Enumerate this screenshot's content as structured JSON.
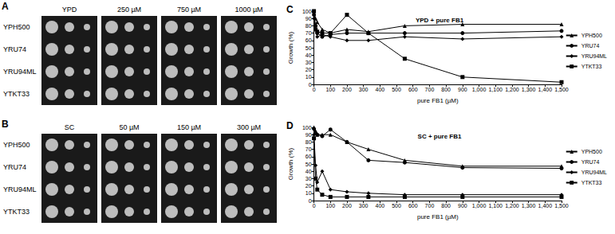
{
  "images": [
    {
      "panel_label": "A",
      "columns": [
        "YPD",
        "250 µM",
        "750 µM",
        "1000 µM"
      ],
      "rows": [
        "YPH500",
        "YRU74",
        "YRU94ML",
        "YTKT33"
      ]
    },
    {
      "panel_label": "B",
      "columns": [
        "SC",
        "50 µM",
        "150 µM",
        "300 µM"
      ],
      "rows": [
        "YPH500",
        "YRU74",
        "YRU94ML",
        "YTKT33"
      ]
    }
  ],
  "chart_data": [
    {
      "type": "line",
      "panel_label": "C",
      "title": "YPD + pure FB1",
      "x_label": "pure FB1 (µM)",
      "y_label": "Growth (%)",
      "x": [
        0,
        10,
        20,
        50,
        100,
        200,
        330,
        550,
        900,
        1500
      ],
      "series": [
        {
          "name": "YPH500",
          "color": "#000000",
          "marker": "triangle",
          "values": [
            100,
            90,
            85,
            75,
            70,
            75,
            72,
            80,
            82,
            82
          ]
        },
        {
          "name": "YRU74",
          "color": "#000000",
          "marker": "circle",
          "values": [
            95,
            80,
            70,
            65,
            68,
            70,
            70,
            70,
            70,
            73
          ]
        },
        {
          "name": "YRU94ML",
          "color": "#000000",
          "marker": "diamond",
          "values": [
            90,
            75,
            65,
            68,
            65,
            60,
            60,
            65,
            62,
            65
          ]
        },
        {
          "name": "YTKT33",
          "color": "#000000",
          "marker": "square",
          "values": [
            100,
            75,
            72,
            70,
            70,
            95,
            70,
            35,
            10,
            3
          ]
        }
      ],
      "xlim": [
        0,
        1500
      ],
      "xticks": [
        0,
        100,
        200,
        300,
        400,
        500,
        600,
        700,
        800,
        900,
        1000,
        1100,
        1200,
        1300,
        1400,
        1500
      ],
      "ylim": [
        0,
        100
      ],
      "yticks": [
        0,
        10,
        20,
        30,
        40,
        50,
        60,
        70,
        80,
        90,
        100
      ],
      "grid": false,
      "legend": "right"
    },
    {
      "type": "line",
      "panel_label": "D",
      "title": "SC + pure FB1",
      "x_label": "pure FB1 (µM)",
      "y_label": "Growth (%)",
      "x": [
        0,
        10,
        20,
        50,
        100,
        200,
        330,
        550,
        900,
        1500
      ],
      "series": [
        {
          "name": "YPH500",
          "color": "#000000",
          "marker": "triangle",
          "values": [
            100,
            95,
            90,
            90,
            90,
            80,
            70,
            55,
            47,
            47
          ]
        },
        {
          "name": "YRU74",
          "color": "#000000",
          "marker": "circle",
          "values": [
            98,
            92,
            90,
            88,
            97,
            80,
            55,
            52,
            45,
            44
          ]
        },
        {
          "name": "YRU94ML",
          "color": "#000000",
          "marker": "diamond",
          "values": [
            90,
            48,
            25,
            40,
            15,
            12,
            10,
            8,
            8,
            8
          ]
        },
        {
          "name": "YTKT33",
          "color": "#000000",
          "marker": "square",
          "values": [
            85,
            30,
            15,
            8,
            5,
            5,
            5,
            5,
            5,
            5
          ]
        }
      ],
      "xlim": [
        0,
        1500
      ],
      "xticks": [
        0,
        100,
        200,
        300,
        400,
        500,
        600,
        700,
        800,
        900,
        1000,
        1100,
        1200,
        1300,
        1400,
        1500
      ],
      "ylim": [
        0,
        100
      ],
      "yticks": [
        0,
        10,
        20,
        30,
        40,
        50,
        60,
        70,
        80,
        90,
        100
      ],
      "grid": false,
      "legend": "right"
    }
  ]
}
